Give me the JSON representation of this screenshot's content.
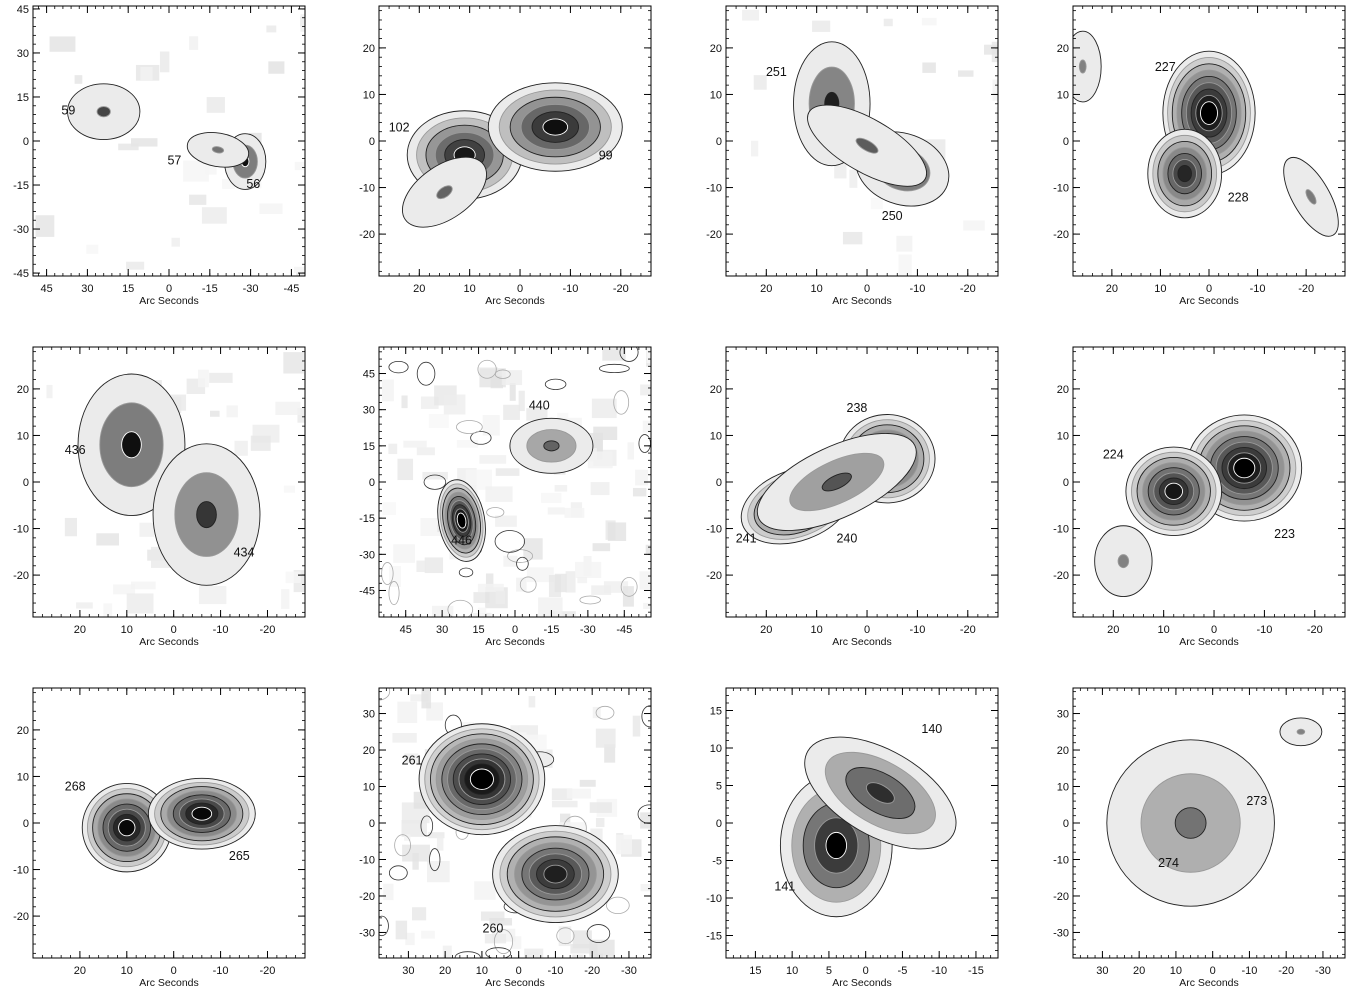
{
  "figure": {
    "xlabel": "Arc Seconds",
    "panels": [
      {
        "id": "p1",
        "xticks": [
          "45",
          "30",
          "15",
          "0",
          "-15",
          "-30",
          "-45"
        ],
        "yticks": [
          "45",
          "30",
          "15",
          "0",
          "-15",
          "-30",
          "-45"
        ],
        "xrange": [
          50,
          -50
        ],
        "yrange": [
          -46,
          46
        ],
        "labels": [
          {
            "text": "59",
            "x": 37,
            "y": 9
          },
          {
            "text": "57",
            "x": -2,
            "y": -8
          },
          {
            "text": "56",
            "x": -31,
            "y": -16
          }
        ],
        "blobs": [
          {
            "x": 24,
            "y": 10,
            "sx": 7,
            "sy": 5,
            "a": 0,
            "amp": 0.55,
            "levels": 1
          },
          {
            "x": -28,
            "y": -7,
            "sx": 4,
            "sy": 5,
            "a": 0,
            "amp": 0.9,
            "levels": 2
          },
          {
            "x": -18,
            "y": -3,
            "sx": 6,
            "sy": 3,
            "a": -10,
            "amp": 0.25,
            "levels": 1
          }
        ],
        "noise": 0.12
      },
      {
        "id": "p2",
        "xticks": [
          "20",
          "10",
          "0",
          "-10",
          "-20"
        ],
        "yticks": [
          "20",
          "10",
          "0",
          "-10",
          "-20"
        ],
        "xrange": [
          28,
          -26
        ],
        "yrange": [
          -29,
          29
        ],
        "labels": [
          {
            "text": "102",
            "x": 24,
            "y": 2
          },
          {
            "text": "99",
            "x": -17,
            "y": -4
          }
        ],
        "blobs": [
          {
            "x": 11,
            "y": -3,
            "sx": 6,
            "sy": 5,
            "a": 0,
            "amp": 0.85,
            "levels": 5
          },
          {
            "x": -7,
            "y": 3,
            "sx": 7,
            "sy": 5,
            "a": 0,
            "amp": 0.9,
            "levels": 5
          },
          {
            "x": 15,
            "y": -11,
            "sx": 5,
            "sy": 3,
            "a": 35,
            "amp": 0.35,
            "levels": 1
          }
        ],
        "noise": 0
      },
      {
        "id": "p3",
        "xticks": [
          "20",
          "10",
          "0",
          "-10",
          "-20"
        ],
        "yticks": [
          "20",
          "10",
          "0",
          "-10",
          "-20"
        ],
        "xrange": [
          28,
          -26
        ],
        "yrange": [
          -29,
          29
        ],
        "labels": [
          {
            "text": "251",
            "x": 18,
            "y": 14
          },
          {
            "text": "250",
            "x": -5,
            "y": -17
          }
        ],
        "blobs": [
          {
            "x": 7,
            "y": 8,
            "sx": 4,
            "sy": 7,
            "a": 0,
            "amp": 0.8,
            "levels": 2
          },
          {
            "x": -7,
            "y": -6,
            "sx": 5,
            "sy": 4,
            "a": -20,
            "amp": 0.9,
            "levels": 2
          },
          {
            "x": 0,
            "y": -1,
            "sx": 7,
            "sy": 3,
            "a": -30,
            "amp": 0.4,
            "levels": 1
          }
        ],
        "noise": 0.08
      },
      {
        "id": "p4",
        "xticks": [
          "20",
          "10",
          "0",
          "-10",
          "-20"
        ],
        "yticks": [
          "20",
          "10",
          "0",
          "-10",
          "-20"
        ],
        "xrange": [
          28,
          -28
        ],
        "yrange": [
          -29,
          29
        ],
        "labels": [
          {
            "text": "227",
            "x": 9,
            "y": 15
          },
          {
            "text": "228",
            "x": -6,
            "y": -13
          }
        ],
        "blobs": [
          {
            "x": 0,
            "y": 6,
            "sx": 5,
            "sy": 7,
            "a": 0,
            "amp": 1.0,
            "levels": 8
          },
          {
            "x": 5,
            "y": -7,
            "sx": 4,
            "sy": 5,
            "a": 0,
            "amp": 0.75,
            "levels": 6
          },
          {
            "x": -21,
            "y": -12,
            "sx": 2,
            "sy": 5,
            "a": 30,
            "amp": 0.2,
            "levels": 1
          },
          {
            "x": 26,
            "y": 16,
            "sx": 2,
            "sy": 4,
            "a": 0,
            "amp": 0.15,
            "levels": 1
          }
        ],
        "noise": 0
      },
      {
        "id": "p5",
        "xticks": [
          "20",
          "10",
          "0",
          "-10",
          "-20"
        ],
        "yticks": [
          "20",
          "10",
          "0",
          "-10",
          "-20"
        ],
        "xrange": [
          30,
          -28
        ],
        "yrange": [
          -29,
          29
        ],
        "labels": [
          {
            "text": "436",
            "x": 21,
            "y": 6
          },
          {
            "text": "434",
            "x": -15,
            "y": -16
          }
        ],
        "blobs": [
          {
            "x": 9,
            "y": 8,
            "sx": 6,
            "sy": 8,
            "a": 0,
            "amp": 0.9,
            "levels": 2
          },
          {
            "x": -7,
            "y": -7,
            "sx": 6,
            "sy": 8,
            "a": 0,
            "amp": 0.65,
            "levels": 2
          }
        ],
        "noise": 0.15
      },
      {
        "id": "p6",
        "xticks": [
          "45",
          "30",
          "15",
          "0",
          "-15",
          "-30",
          "-45"
        ],
        "yticks": [
          "45",
          "30",
          "15",
          "0",
          "-15",
          "-30",
          "-45"
        ],
        "xrange": [
          56,
          -56
        ],
        "yrange": [
          -56,
          56
        ],
        "labels": [
          {
            "text": "440",
            "x": -10,
            "y": 30
          },
          {
            "text": "446",
            "x": 22,
            "y": -26
          }
        ],
        "blobs": [
          {
            "x": 22,
            "y": -16,
            "sx": 5,
            "sy": 9,
            "a": 10,
            "amp": 1.0,
            "levels": 8
          },
          {
            "x": -15,
            "y": 15,
            "sx": 9,
            "sy": 6,
            "a": 0,
            "amp": 0.35,
            "levels": 2
          }
        ],
        "noise": 0.35
      },
      {
        "id": "p7",
        "xticks": [
          "20",
          "10",
          "0",
          "-10",
          "-20"
        ],
        "yticks": [
          "20",
          "10",
          "0",
          "-10",
          "-20"
        ],
        "xrange": [
          28,
          -26
        ],
        "yrange": [
          -29,
          29
        ],
        "labels": [
          {
            "text": "238",
            "x": 2,
            "y": 15
          },
          {
            "text": "241",
            "x": 24,
            "y": -13
          },
          {
            "text": "240",
            "x": 4,
            "y": -13
          }
        ],
        "blobs": [
          {
            "x": -4,
            "y": 5,
            "sx": 5,
            "sy": 5,
            "a": 0,
            "amp": 0.9,
            "levels": 7
          },
          {
            "x": 14,
            "y": -5,
            "sx": 6,
            "sy": 4,
            "a": 20,
            "amp": 0.9,
            "levels": 7
          },
          {
            "x": 6,
            "y": 0,
            "sx": 9,
            "sy": 4,
            "a": 25,
            "amp": 0.45,
            "levels": 2
          }
        ],
        "noise": 0
      },
      {
        "id": "p8",
        "xticks": [
          "20",
          "10",
          "0",
          "-10",
          "-20"
        ],
        "yticks": [
          "20",
          "10",
          "0",
          "-10",
          "-20"
        ],
        "xrange": [
          28,
          -26
        ],
        "yrange": [
          -29,
          29
        ],
        "labels": [
          {
            "text": "224",
            "x": 20,
            "y": 5
          },
          {
            "text": "223",
            "x": -14,
            "y": -12
          }
        ],
        "blobs": [
          {
            "x": -6,
            "y": 3,
            "sx": 6,
            "sy": 6,
            "a": 0,
            "amp": 1.0,
            "levels": 8
          },
          {
            "x": 8,
            "y": -2,
            "sx": 5,
            "sy": 5,
            "a": 0,
            "amp": 0.85,
            "levels": 7
          },
          {
            "x": 18,
            "y": -17,
            "sx": 3,
            "sy": 4,
            "a": 0,
            "amp": 0.15,
            "levels": 1
          }
        ],
        "noise": 0
      },
      {
        "id": "p9",
        "xticks": [
          "20",
          "10",
          "0",
          "-10",
          "-20"
        ],
        "yticks": [
          "20",
          "10",
          "0",
          "-10",
          "-20"
        ],
        "xrange": [
          30,
          -28
        ],
        "yrange": [
          -29,
          29
        ],
        "labels": [
          {
            "text": "268",
            "x": 21,
            "y": 7
          },
          {
            "text": "265",
            "x": -14,
            "y": -8
          }
        ],
        "blobs": [
          {
            "x": 10,
            "y": -1,
            "sx": 5,
            "sy": 5,
            "a": 0,
            "amp": 0.95,
            "levels": 7
          },
          {
            "x": -6,
            "y": 2,
            "sx": 6,
            "sy": 4,
            "a": 0,
            "amp": 0.95,
            "levels": 7
          }
        ],
        "noise": 0
      },
      {
        "id": "p10",
        "xticks": [
          "30",
          "20",
          "10",
          "0",
          "-10",
          "-20",
          "-30"
        ],
        "yticks": [
          "30",
          "20",
          "10",
          "0",
          "-10",
          "-20",
          "-30"
        ],
        "xrange": [
          38,
          -36
        ],
        "yrange": [
          -37,
          37
        ],
        "labels": [
          {
            "text": "261",
            "x": 29,
            "y": 16
          },
          {
            "text": "260",
            "x": 7,
            "y": -30
          }
        ],
        "blobs": [
          {
            "x": 10,
            "y": 12,
            "sx": 9,
            "sy": 8,
            "a": 0,
            "amp": 1.0,
            "levels": 9
          },
          {
            "x": -10,
            "y": -14,
            "sx": 9,
            "sy": 7,
            "a": 0,
            "amp": 0.8,
            "levels": 7
          }
        ],
        "noise": 0.3
      },
      {
        "id": "p11",
        "xticks": [
          "15",
          "10",
          "5",
          "0",
          "-5",
          "-10",
          "-15"
        ],
        "yticks": [
          "15",
          "10",
          "5",
          "0",
          "-5",
          "-10",
          "-15"
        ],
        "xrange": [
          19,
          -18
        ],
        "yrange": [
          -18,
          18
        ],
        "labels": [
          {
            "text": "140",
            "x": -9,
            "y": 12
          },
          {
            "text": "141",
            "x": 11,
            "y": -9
          }
        ],
        "blobs": [
          {
            "x": 4,
            "y": -3,
            "sx": 4,
            "sy": 5,
            "a": 0,
            "amp": 1.0,
            "levels": 4
          },
          {
            "x": -2,
            "y": 4,
            "sx": 6,
            "sy": 3,
            "a": -30,
            "amp": 0.7,
            "levels": 3
          }
        ],
        "noise": 0
      },
      {
        "id": "p12",
        "xticks": [
          "30",
          "20",
          "10",
          "0",
          "-10",
          "-20",
          "-30"
        ],
        "yticks": [
          "30",
          "20",
          "10",
          "0",
          "-10",
          "-20",
          "-30"
        ],
        "xrange": [
          38,
          -36
        ],
        "yrange": [
          -37,
          37
        ],
        "labels": [
          {
            "text": "273",
            "x": -12,
            "y": 5
          },
          {
            "text": "274",
            "x": 12,
            "y": -12
          }
        ],
        "blobs": [
          {
            "x": -2,
            "y": 4,
            "sx": 4,
            "sy": 5,
            "a": 0,
            "amp": 1.0,
            "levels": 7
          },
          {
            "x": 6,
            "y": 0,
            "sx": 12,
            "sy": 12,
            "a": 0,
            "amp": 0.25,
            "levels": 2
          },
          {
            "x": -24,
            "y": 25,
            "sx": 3,
            "sy": 2,
            "a": 0,
            "amp": 0.15,
            "levels": 1
          }
        ],
        "noise": 0
      }
    ]
  }
}
